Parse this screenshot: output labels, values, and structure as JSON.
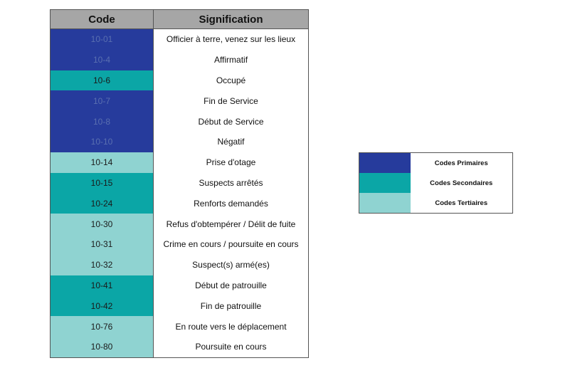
{
  "colors": {
    "primary": "#263b9c",
    "secondary": "#0ba6a6",
    "tertiary": "#8fd3d1",
    "header": "#a6a6a6"
  },
  "table": {
    "header_code": "Code",
    "header_signification": "Signification",
    "rows": [
      {
        "code": "10-01",
        "meaning": "Officier à terre, venez sur les lieux",
        "category": "primary"
      },
      {
        "code": "10-4",
        "meaning": "Affirmatif",
        "category": "primary"
      },
      {
        "code": "10-6",
        "meaning": "Occupé",
        "category": "secondary"
      },
      {
        "code": "10-7",
        "meaning": "Fin de Service",
        "category": "primary"
      },
      {
        "code": "10-8",
        "meaning": "Début de Service",
        "category": "primary"
      },
      {
        "code": "10-10",
        "meaning": "Négatif",
        "category": "primary"
      },
      {
        "code": "10-14",
        "meaning": "Prise d'otage",
        "category": "tertiary"
      },
      {
        "code": "10-15",
        "meaning": "Suspects arrêtés",
        "category": "secondary"
      },
      {
        "code": "10-24",
        "meaning": "Renforts demandés",
        "category": "secondary"
      },
      {
        "code": "10-30",
        "meaning": "Refus d'obtempérer / Délit de fuite",
        "category": "tertiary"
      },
      {
        "code": "10-31",
        "meaning": "Crime en cours / poursuite en cours",
        "category": "tertiary"
      },
      {
        "code": "10-32",
        "meaning": "Suspect(s) armé(es)",
        "category": "tertiary"
      },
      {
        "code": "10-41",
        "meaning": "Début de patrouille",
        "category": "secondary"
      },
      {
        "code": "10-42",
        "meaning": "Fin de patrouille",
        "category": "secondary"
      },
      {
        "code": "10-76",
        "meaning": "En route vers le déplacement",
        "category": "tertiary"
      },
      {
        "code": "10-80",
        "meaning": "Poursuite en cours",
        "category": "tertiary"
      }
    ]
  },
  "legend": {
    "items": [
      {
        "label": "Codes Primaires",
        "category": "primary"
      },
      {
        "label": "Codes Secondaires",
        "category": "secondary"
      },
      {
        "label": "Codes Tertiaires",
        "category": "tertiary"
      }
    ]
  }
}
